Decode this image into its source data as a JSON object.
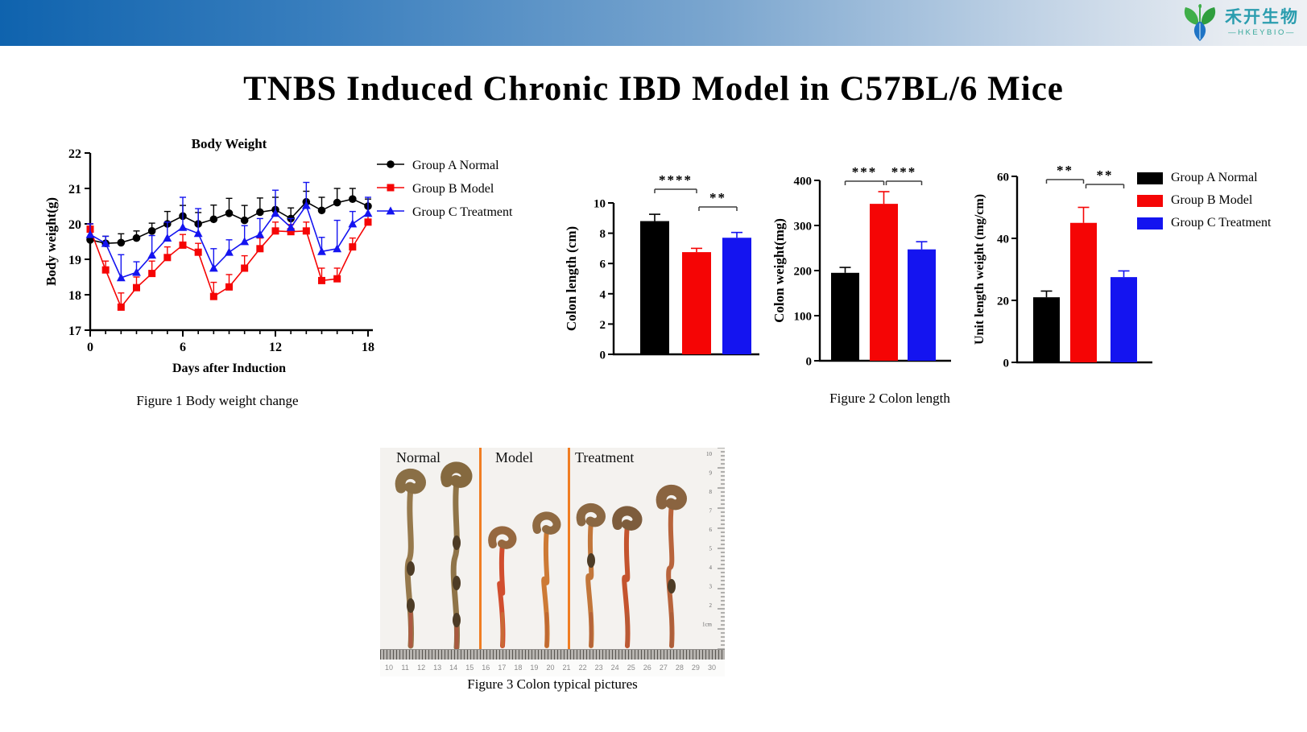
{
  "page_title": "TNBS Induced Chronic IBD Model in C57BL/6 Mice",
  "logo": {
    "cn": "禾开生物",
    "en": "—HKEYBIO—"
  },
  "colors": {
    "group_a": "#000000",
    "group_b": "#f50505",
    "group_c": "#1414f0",
    "divider_orange": "#f07d22",
    "topbar_left": "#0f63ae",
    "topbar_right": "#eef1f4",
    "logo_teal": "#2b9daf",
    "logo_green": "#3fae49",
    "logo_blue": "#1f74c5"
  },
  "groups": [
    "Group A Normal",
    "Group B Model",
    "Group C Treatment"
  ],
  "captions": {
    "figure1": "Figure 1 Body  weight change",
    "figure2": "Figure 2 Colon length",
    "figure3": "Figure 3 Colon typical pictures"
  },
  "chart_data": [
    {
      "id": "body_weight",
      "type": "line",
      "title": "Body Weight",
      "xlabel": "Days after Induction",
      "ylabel": "Body weight(g)",
      "xlim": [
        0,
        18
      ],
      "ylim": [
        17,
        22
      ],
      "xticks": [
        0,
        6,
        12,
        18
      ],
      "yticks": [
        17,
        18,
        19,
        20,
        21,
        22
      ],
      "x": [
        0,
        1,
        2,
        3,
        4,
        5,
        6,
        7,
        8,
        9,
        10,
        11,
        12,
        13,
        14,
        15,
        16,
        17,
        18
      ],
      "legend_position": "right",
      "grid": false,
      "series": [
        {
          "name": "Group A Normal",
          "color": "#000000",
          "marker": "circle",
          "values": [
            19.55,
            19.45,
            19.47,
            19.6,
            19.8,
            20.0,
            20.22,
            20.0,
            20.13,
            20.3,
            20.1,
            20.33,
            20.4,
            20.15,
            20.62,
            20.38,
            20.6,
            20.7,
            20.5
          ],
          "errors": [
            0.45,
            0.2,
            0.25,
            0.2,
            0.22,
            0.35,
            0.3,
            0.32,
            0.4,
            0.42,
            0.42,
            0.4,
            0.35,
            0.3,
            0.3,
            0.37,
            0.4,
            0.3,
            0.2
          ]
        },
        {
          "name": "Group B Model",
          "color": "#f50505",
          "marker": "square",
          "values": [
            19.85,
            18.7,
            17.65,
            18.2,
            18.6,
            19.05,
            19.4,
            19.2,
            17.95,
            18.22,
            18.75,
            19.3,
            19.8,
            19.78,
            19.8,
            18.4,
            18.45,
            19.35,
            20.05
          ],
          "errors": [
            0.15,
            0.25,
            0.4,
            0.3,
            0.35,
            0.3,
            0.3,
            0.25,
            0.4,
            0.35,
            0.35,
            0.3,
            0.25,
            0.2,
            0.25,
            0.35,
            0.3,
            0.25,
            0.2
          ]
        },
        {
          "name": "Group C Treatment",
          "color": "#1414f0",
          "marker": "triangle",
          "values": [
            19.7,
            19.45,
            18.48,
            18.63,
            19.12,
            19.6,
            19.9,
            19.73,
            18.75,
            19.2,
            19.5,
            19.7,
            20.3,
            19.9,
            20.52,
            19.22,
            19.3,
            20.0,
            20.3
          ],
          "errors": [
            0.3,
            0.2,
            0.65,
            0.3,
            0.55,
            0.45,
            0.85,
            0.7,
            0.55,
            0.35,
            0.45,
            0.45,
            0.65,
            0.25,
            0.65,
            0.4,
            0.8,
            0.35,
            0.45
          ]
        }
      ]
    },
    {
      "id": "colon_length",
      "type": "bar",
      "ylabel": "Colon length (cm)",
      "ylim": [
        0,
        10
      ],
      "yticks": [
        0,
        2,
        4,
        6,
        8,
        10
      ],
      "categories": [
        "Group A Normal",
        "Group B Model",
        "Group C Treatment"
      ],
      "values": [
        8.8,
        6.75,
        7.7
      ],
      "errors": [
        0.45,
        0.25,
        0.35
      ],
      "bar_colors": [
        "#000000",
        "#f50505",
        "#1414f0"
      ],
      "significance": [
        {
          "from": 0,
          "to": 1,
          "label": "****"
        },
        {
          "from": 1,
          "to": 2,
          "label": "**"
        }
      ]
    },
    {
      "id": "colon_weight",
      "type": "bar",
      "ylabel": "Colon weight(mg)",
      "ylim": [
        0,
        400
      ],
      "yticks": [
        0,
        100,
        200,
        300,
        400
      ],
      "categories": [
        "Group A Normal",
        "Group B Model",
        "Group C Treatment"
      ],
      "values": [
        195,
        348,
        247
      ],
      "errors": [
        12,
        27,
        17
      ],
      "bar_colors": [
        "#000000",
        "#f50505",
        "#1414f0"
      ],
      "significance": [
        {
          "from": 0,
          "to": 1,
          "label": "***"
        },
        {
          "from": 1,
          "to": 2,
          "label": "***"
        }
      ]
    },
    {
      "id": "unit_length_weight",
      "type": "bar",
      "ylabel": "Unit length weight (mg/cm)",
      "ylim": [
        0,
        60
      ],
      "yticks": [
        0,
        20,
        40,
        60
      ],
      "categories": [
        "Group A Normal",
        "Group B Model",
        "Group C Treatment"
      ],
      "values": [
        21,
        45,
        27.5
      ],
      "errors": [
        2,
        5,
        2
      ],
      "bar_colors": [
        "#000000",
        "#f50505",
        "#1414f0"
      ],
      "significance": [
        {
          "from": 0,
          "to": 1,
          "label": "**"
        },
        {
          "from": 1,
          "to": 2,
          "label": "**"
        }
      ]
    }
  ],
  "figure3": {
    "section_labels": [
      "Normal",
      "Model",
      "Treatment"
    ],
    "bottom_ruler": [
      "10",
      "11",
      "12",
      "13",
      "14",
      "15",
      "16",
      "17",
      "18",
      "19",
      "20",
      "21",
      "22",
      "23",
      "24",
      "25",
      "26",
      "27",
      "28",
      "29",
      "30"
    ],
    "side_ruler": [
      "10",
      "9",
      "8",
      "7",
      "6",
      "5",
      "4",
      "3",
      "2",
      "1cm"
    ]
  }
}
